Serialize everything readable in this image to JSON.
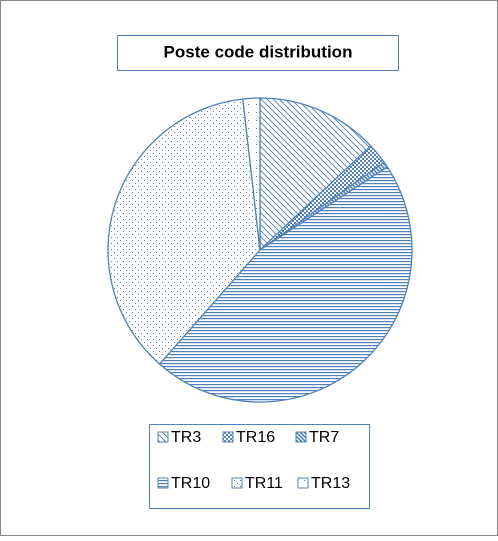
{
  "chart_data": {
    "type": "pie",
    "title": "Poste code distribution",
    "categories": [
      "TR3",
      "TR16",
      "TR7",
      "TR10",
      "TR11",
      "TR13"
    ],
    "values": [
      13,
      2.2,
      0.6,
      45.7,
      36.7,
      1.8
    ],
    "color": "#4f81bd",
    "legend": "bottom"
  }
}
